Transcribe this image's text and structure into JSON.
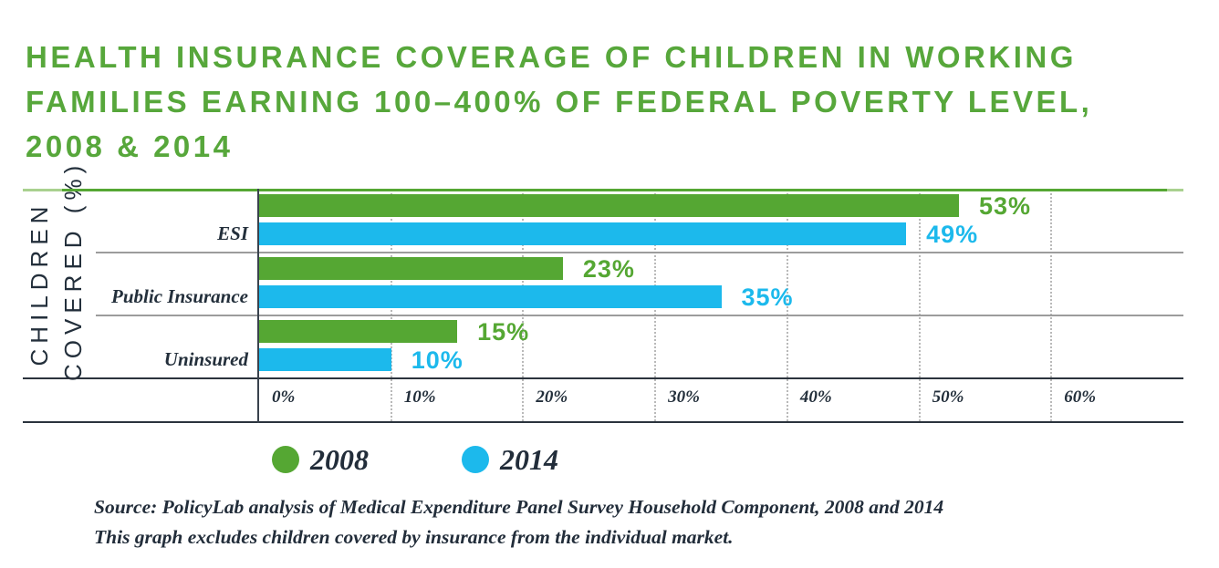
{
  "title": {
    "lines": [
      "HEALTH INSURANCE COVERAGE OF CHILDREN IN WORKING",
      "FAMILIES EARNING 100–400% OF FEDERAL POVERTY LEVEL,",
      "2008 & 2014"
    ],
    "color": "#57a73b"
  },
  "chart_data": {
    "type": "bar",
    "orientation": "horizontal",
    "title": "Health insurance coverage of children in working families earning 100–400% of federal poverty level, 2008 & 2014",
    "categories": [
      "ESI",
      "Public Insurance",
      "Uninsured"
    ],
    "series": [
      {
        "name": "2008",
        "color": "#55a733",
        "values": [
          53,
          23,
          15
        ],
        "value_labels": [
          "53%",
          "23%",
          "15%"
        ]
      },
      {
        "name": "2014",
        "color": "#1cb9ec",
        "values": [
          49,
          35,
          10
        ],
        "value_labels": [
          "49%",
          "35%",
          "10%"
        ]
      }
    ],
    "ylabel_line1": "CHILDREN",
    "ylabel_line2": "COVERED (%)",
    "xlim": [
      0,
      70
    ],
    "x_ticks": [
      "0%",
      "10%",
      "20%",
      "30%",
      "40%",
      "50%",
      "60%"
    ],
    "grid": "vertical-dotted",
    "legend_position": "bottom-left"
  },
  "legend": {
    "items": [
      {
        "label": "2008",
        "color": "#55a733"
      },
      {
        "label": "2014",
        "color": "#1cb9ec"
      }
    ]
  },
  "source": {
    "line1": "Source: PolicyLab analysis of Medical Expenditure Panel Survey Household Component, 2008 and 2014",
    "line2": "This graph excludes children covered by insurance from the individual market."
  },
  "colors": {
    "green": "#55a733",
    "green_light": "#a9d18f",
    "blue": "#1cb9ec",
    "dark_text": "#232f3b",
    "divider_gray": "#9c9c9c",
    "grid_gray": "#b9b9b9",
    "line_dark": "#2b333d"
  }
}
